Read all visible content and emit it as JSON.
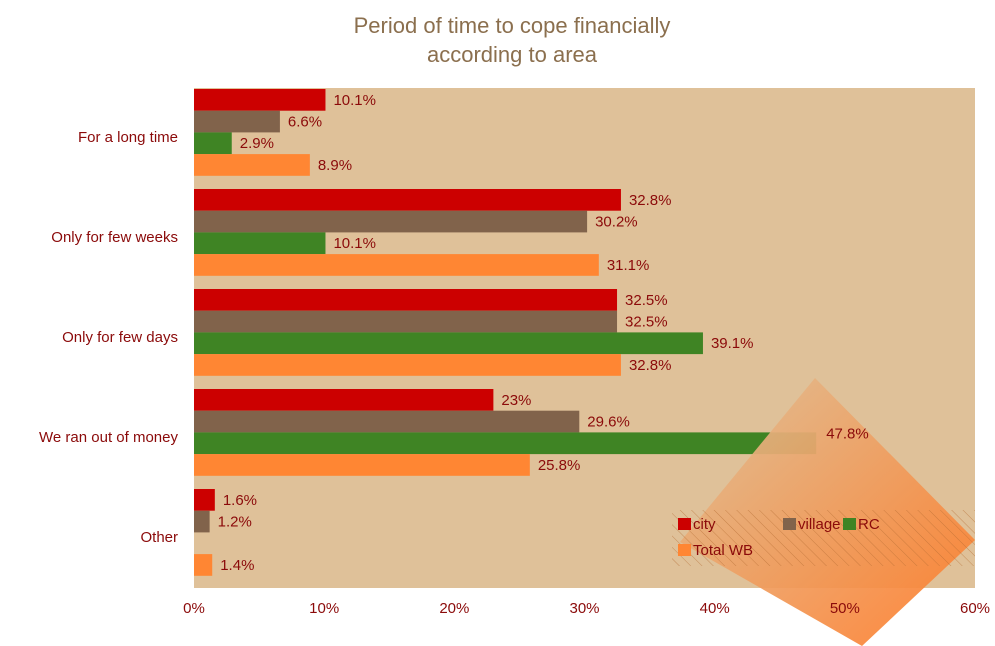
{
  "chart_data": {
    "type": "hbar",
    "title": [
      "Period of time to cope financially",
      "according to area"
    ],
    "categories": [
      "For a long time",
      "Only for few weeks",
      "Only for few days",
      "We ran out of money",
      "Other"
    ],
    "series": [
      {
        "name": "city",
        "color": "#cc0000",
        "values": [
          10.1,
          32.8,
          32.5,
          23,
          1.6
        ]
      },
      {
        "name": "village",
        "color": "#81634b",
        "values": [
          6.6,
          30.2,
          32.5,
          29.6,
          1.2
        ]
      },
      {
        "name": "RC",
        "color": "#3f8424",
        "values": [
          2.9,
          10.1,
          39.1,
          47.8,
          null
        ]
      },
      {
        "name": "Total WB",
        "color": "#ff8633",
        "values": [
          8.9,
          31.1,
          32.8,
          25.8,
          1.4
        ]
      }
    ],
    "xlim": [
      0,
      60
    ],
    "xticks": [
      {
        "value": 0,
        "label": "0%"
      },
      {
        "value": 10,
        "label": "10%"
      },
      {
        "value": 20,
        "label": "20%"
      },
      {
        "value": 30,
        "label": "30%"
      },
      {
        "value": 40,
        "label": "40%"
      },
      {
        "value": 50,
        "label": "50%"
      },
      {
        "value": 60,
        "label": "60%"
      }
    ],
    "value_labels": [
      [
        "10.1%",
        "32.8%",
        "32.5%",
        "23%",
        "1.6%"
      ],
      [
        "6.6%",
        "30.2%",
        "32.5%",
        "29.6%",
        "1.2%"
      ],
      [
        "2.9%",
        "10.1%",
        "39.1%",
        "47.8%",
        null
      ],
      [
        "8.9%",
        "31.1%",
        "32.8%",
        "25.8%",
        "1.4%"
      ]
    ],
    "legend": "lower right",
    "plot_background": "#dfc199"
  }
}
